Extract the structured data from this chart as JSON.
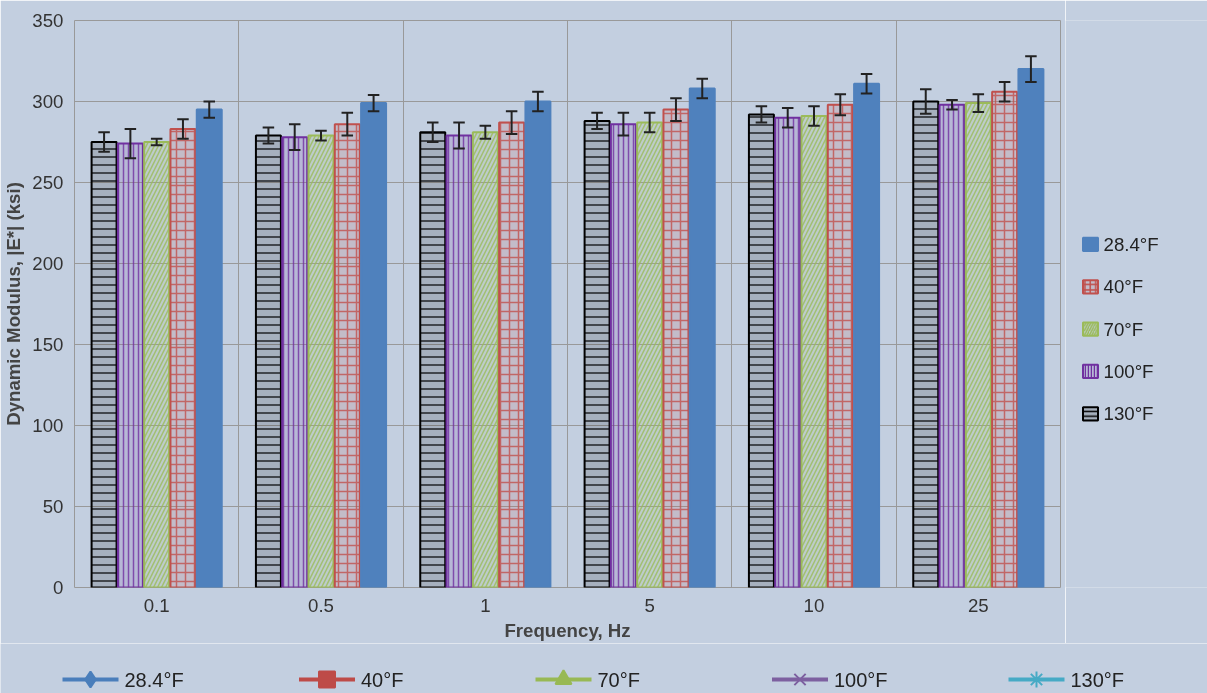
{
  "chart_data": {
    "type": "bar",
    "xlabel": "Frequency, Hz",
    "ylabel": "Dynamic Modulus, |E*| (ksi)",
    "categories": [
      "0.1",
      "0.5",
      "1",
      "5",
      "10",
      "25"
    ],
    "series": [
      {
        "name": "130°F",
        "color": "#000000",
        "values": [
          275,
          279,
          281,
          288,
          292,
          300
        ],
        "errors": [
          6,
          5,
          6,
          5,
          5,
          7.5
        ]
      },
      {
        "name": "100°F",
        "color": "#7030a0",
        "values": [
          274,
          278,
          279,
          286,
          290,
          298
        ],
        "errors": [
          9,
          8,
          8,
          7,
          6,
          3
        ]
      },
      {
        "name": "70°F",
        "color": "#9bbb59",
        "values": [
          275,
          279,
          281,
          287,
          291,
          299
        ],
        "errors": [
          2,
          3,
          4,
          6,
          6,
          5.5
        ]
      },
      {
        "name": "40°F",
        "color": "#c0504d",
        "values": [
          283,
          286,
          287,
          295,
          298,
          306
        ],
        "errors": [
          6,
          7,
          7,
          7,
          6.5,
          6
        ]
      },
      {
        "name": "28.4°F",
        "color": "#4f81bd",
        "values": [
          295,
          299,
          300,
          308,
          311,
          320
        ],
        "errors": [
          5,
          5,
          6,
          6,
          6,
          8
        ]
      },
      {
        "name": "28.4°F",
        "type": "line",
        "marker": "diamond",
        "color": "#4a7ebb",
        "values": [
          null,
          null,
          null,
          null,
          null,
          null
        ]
      },
      {
        "name": "40°F",
        "type": "line",
        "marker": "square",
        "color": "#be4b48",
        "values": [
          null,
          null,
          null,
          null,
          null,
          null
        ]
      },
      {
        "name": "70°F",
        "type": "line",
        "marker": "triangle",
        "color": "#98b954",
        "values": [
          null,
          null,
          null,
          null,
          null,
          null
        ]
      },
      {
        "name": "100°F",
        "type": "line",
        "marker": "cross",
        "color": "#7d60a0",
        "values": [
          null,
          null,
          null,
          null,
          null,
          null
        ]
      },
      {
        "name": "130°F",
        "type": "line",
        "marker": "star",
        "color": "#46aac5",
        "values": [
          null,
          null,
          null,
          null,
          null,
          null
        ]
      }
    ],
    "ylim": [
      0,
      350
    ],
    "yticks": [
      0,
      50,
      100,
      150,
      200,
      250,
      300,
      350
    ],
    "grid": true,
    "legend": "right"
  }
}
